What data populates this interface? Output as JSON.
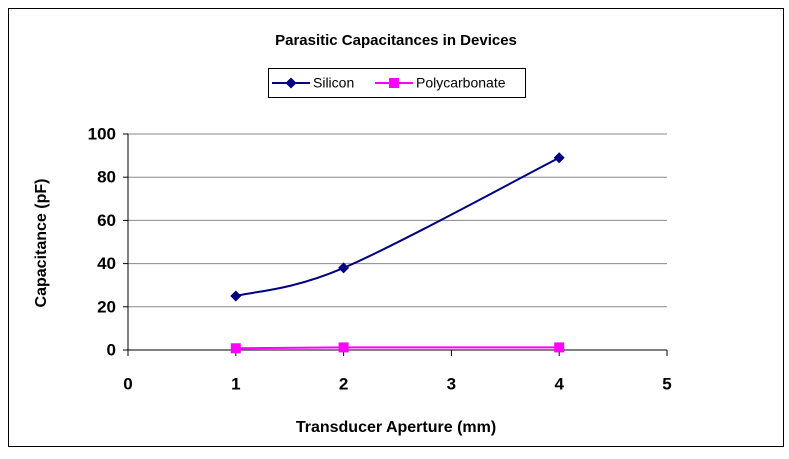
{
  "chart_data": {
    "type": "line",
    "title": "Parasitic Capacitances in Devices",
    "x_label": "Transducer Aperture (mm)",
    "y_label": "Capacitance (pF)",
    "x": [
      1,
      2,
      4
    ],
    "series": [
      {
        "name": "Silicon",
        "color": "#000080",
        "marker": "diamond",
        "values": [
          25,
          38,
          89
        ]
      },
      {
        "name": "Polycarbonate",
        "color": "#ff00ff",
        "marker": "square",
        "values": [
          0.8,
          1.2,
          1.2
        ]
      }
    ],
    "xlim": [
      0,
      5
    ],
    "xticks": [
      0,
      1,
      2,
      3,
      4,
      5
    ],
    "ylim": [
      0,
      100
    ],
    "yticks": [
      0,
      20,
      40,
      60,
      80,
      100
    ],
    "grid": true,
    "smooth": true,
    "legend": "top"
  }
}
